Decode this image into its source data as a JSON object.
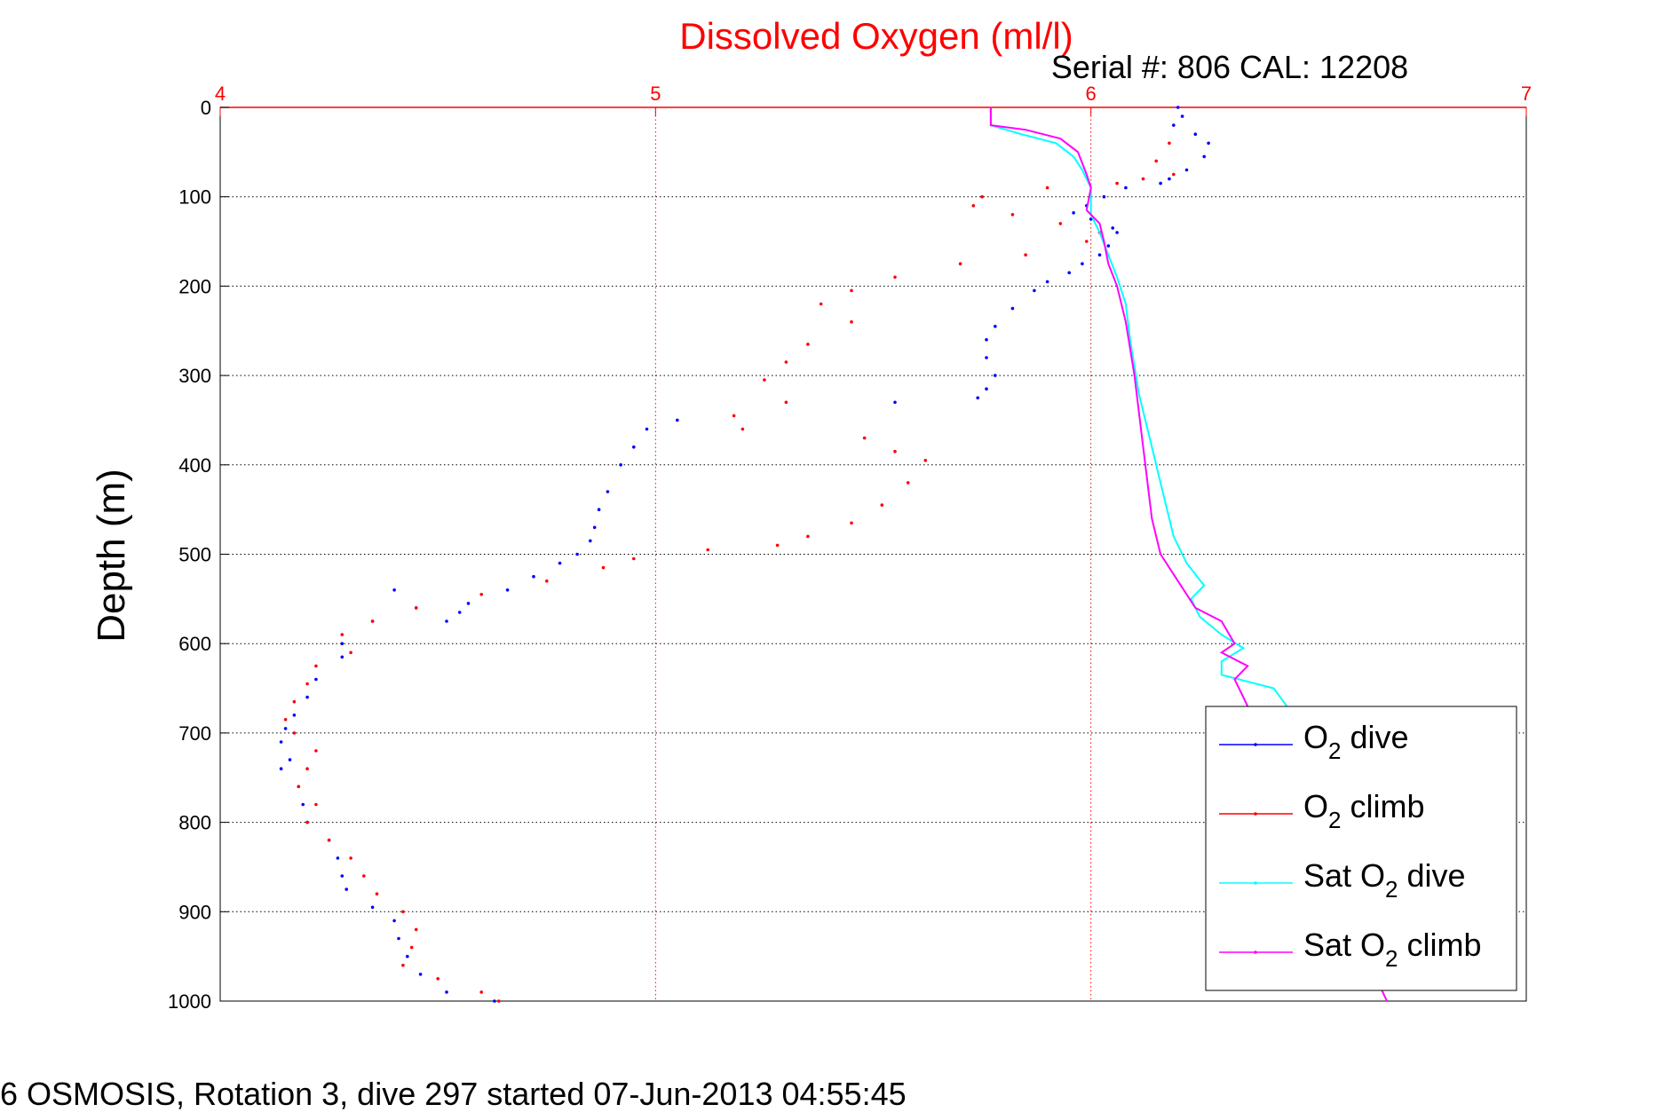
{
  "chart_data": {
    "type": "scatter",
    "title": "Dissolved Oxygen (ml/l)",
    "subtitle": "Serial #: 806  CAL: 12208",
    "ylabel": "Depth (m)",
    "xlabel": "",
    "footer": "6 OSMOSIS, Rotation 3, dive 297 started 07-Jun-2013 04:55:45",
    "xlim": [
      4,
      7
    ],
    "ylim": [
      0,
      1000
    ],
    "y_reversed": true,
    "x_axis_position": "top",
    "xticks": [
      "4",
      "5",
      "6",
      "7"
    ],
    "yticks": [
      "0",
      "100",
      "200",
      "300",
      "400",
      "500",
      "600",
      "700",
      "800",
      "900",
      "1000"
    ],
    "grid": true,
    "legend_position": "bottom-right",
    "colors": {
      "title": "#ff0000",
      "xticks": "#ff0000",
      "o2_dive": "#0000ff",
      "o2_climb": "#ff0000",
      "sat_dive": "#00ffff",
      "sat_climb": "#ff00ff"
    },
    "legend": [
      {
        "key": "o2_dive",
        "pre": "O",
        "sub": "2",
        "post": " dive"
      },
      {
        "key": "o2_climb",
        "pre": "O",
        "sub": "2",
        "post": " climb"
      },
      {
        "key": "sat_dive",
        "pre": "Sat O",
        "sub": "2",
        "post": " dive"
      },
      {
        "key": "sat_climb",
        "pre": "Sat O",
        "sub": "2",
        "post": " climb"
      }
    ],
    "series": [
      {
        "key": "o2_dive",
        "style": "dots",
        "points": [
          [
            6.2,
            0
          ],
          [
            6.21,
            10
          ],
          [
            6.19,
            20
          ],
          [
            6.24,
            30
          ],
          [
            6.27,
            40
          ],
          [
            6.26,
            55
          ],
          [
            6.22,
            70
          ],
          [
            6.18,
            80
          ],
          [
            6.16,
            85
          ],
          [
            6.08,
            90
          ],
          [
            6.03,
            100
          ],
          [
            5.99,
            110
          ],
          [
            5.96,
            118
          ],
          [
            6.0,
            125
          ],
          [
            6.05,
            135
          ],
          [
            6.06,
            140
          ],
          [
            6.04,
            155
          ],
          [
            6.02,
            165
          ],
          [
            5.98,
            175
          ],
          [
            5.95,
            185
          ],
          [
            5.9,
            195
          ],
          [
            5.87,
            205
          ],
          [
            5.82,
            225
          ],
          [
            5.78,
            245
          ],
          [
            5.76,
            260
          ],
          [
            5.76,
            280
          ],
          [
            5.78,
            300
          ],
          [
            5.76,
            315
          ],
          [
            5.74,
            325
          ],
          [
            5.55,
            330
          ],
          [
            5.05,
            350
          ],
          [
            4.98,
            360
          ],
          [
            4.95,
            380
          ],
          [
            4.92,
            400
          ],
          [
            4.89,
            430
          ],
          [
            4.87,
            450
          ],
          [
            4.86,
            470
          ],
          [
            4.85,
            485
          ],
          [
            4.82,
            500
          ],
          [
            4.78,
            510
          ],
          [
            4.72,
            525
          ],
          [
            4.66,
            540
          ],
          [
            4.57,
            555
          ],
          [
            4.55,
            565
          ],
          [
            4.52,
            575
          ],
          [
            4.45,
            560
          ],
          [
            4.4,
            540
          ],
          [
            4.35,
            575
          ],
          [
            4.28,
            600
          ],
          [
            4.28,
            615
          ],
          [
            4.22,
            640
          ],
          [
            4.2,
            660
          ],
          [
            4.17,
            680
          ],
          [
            4.15,
            695
          ],
          [
            4.14,
            710
          ],
          [
            4.16,
            730
          ],
          [
            4.14,
            740
          ],
          [
            4.18,
            760
          ],
          [
            4.19,
            780
          ],
          [
            4.2,
            800
          ],
          [
            4.25,
            820
          ],
          [
            4.27,
            840
          ],
          [
            4.28,
            860
          ],
          [
            4.29,
            875
          ],
          [
            4.35,
            895
          ],
          [
            4.4,
            910
          ],
          [
            4.41,
            930
          ],
          [
            4.43,
            950
          ],
          [
            4.46,
            970
          ],
          [
            4.52,
            990
          ],
          [
            4.63,
            1000
          ]
        ]
      },
      {
        "key": "o2_climb",
        "style": "dots",
        "points": [
          [
            6.18,
            40
          ],
          [
            6.15,
            60
          ],
          [
            6.19,
            75
          ],
          [
            6.12,
            80
          ],
          [
            6.06,
            85
          ],
          [
            5.9,
            90
          ],
          [
            5.75,
            100
          ],
          [
            5.73,
            110
          ],
          [
            5.82,
            120
          ],
          [
            5.93,
            130
          ],
          [
            6.02,
            140
          ],
          [
            5.99,
            150
          ],
          [
            5.85,
            165
          ],
          [
            5.7,
            175
          ],
          [
            5.55,
            190
          ],
          [
            5.45,
            205
          ],
          [
            5.38,
            220
          ],
          [
            5.45,
            240
          ],
          [
            5.35,
            265
          ],
          [
            5.3,
            285
          ],
          [
            5.25,
            305
          ],
          [
            5.3,
            330
          ],
          [
            5.18,
            345
          ],
          [
            5.2,
            360
          ],
          [
            5.48,
            370
          ],
          [
            5.55,
            385
          ],
          [
            5.62,
            395
          ],
          [
            5.58,
            420
          ],
          [
            5.52,
            445
          ],
          [
            5.45,
            465
          ],
          [
            5.35,
            480
          ],
          [
            5.28,
            490
          ],
          [
            5.12,
            495
          ],
          [
            4.95,
            505
          ],
          [
            4.88,
            515
          ],
          [
            4.75,
            530
          ],
          [
            4.6,
            545
          ],
          [
            4.45,
            560
          ],
          [
            4.35,
            575
          ],
          [
            4.28,
            590
          ],
          [
            4.3,
            610
          ],
          [
            4.22,
            625
          ],
          [
            4.2,
            645
          ],
          [
            4.17,
            665
          ],
          [
            4.15,
            685
          ],
          [
            4.17,
            700
          ],
          [
            4.22,
            720
          ],
          [
            4.2,
            740
          ],
          [
            4.18,
            760
          ],
          [
            4.22,
            780
          ],
          [
            4.2,
            800
          ],
          [
            4.25,
            820
          ],
          [
            4.3,
            840
          ],
          [
            4.33,
            860
          ],
          [
            4.36,
            880
          ],
          [
            4.42,
            900
          ],
          [
            4.45,
            920
          ],
          [
            4.44,
            940
          ],
          [
            4.42,
            960
          ],
          [
            4.5,
            975
          ],
          [
            4.6,
            990
          ],
          [
            4.64,
            1000
          ]
        ]
      },
      {
        "key": "sat_dive",
        "style": "line",
        "points": [
          [
            5.77,
            0
          ],
          [
            5.77,
            20
          ],
          [
            5.84,
            30
          ],
          [
            5.92,
            40
          ],
          [
            5.96,
            55
          ],
          [
            5.98,
            70
          ],
          [
            6.0,
            90
          ],
          [
            6.0,
            120
          ],
          [
            6.02,
            140
          ],
          [
            6.04,
            165
          ],
          [
            6.06,
            190
          ],
          [
            6.08,
            220
          ],
          [
            6.09,
            260
          ],
          [
            6.1,
            290
          ],
          [
            6.11,
            320
          ],
          [
            6.13,
            360
          ],
          [
            6.15,
            400
          ],
          [
            6.17,
            440
          ],
          [
            6.19,
            480
          ],
          [
            6.22,
            510
          ],
          [
            6.26,
            535
          ],
          [
            6.23,
            550
          ],
          [
            6.25,
            570
          ],
          [
            6.3,
            590
          ],
          [
            6.35,
            605
          ],
          [
            6.3,
            620
          ],
          [
            6.3,
            635
          ],
          [
            6.42,
            650
          ],
          [
            6.45,
            670
          ]
        ]
      },
      {
        "key": "sat_climb",
        "style": "line",
        "points": [
          [
            5.77,
            0
          ],
          [
            5.77,
            20
          ],
          [
            5.85,
            25
          ],
          [
            5.93,
            35
          ],
          [
            5.97,
            50
          ],
          [
            5.99,
            75
          ],
          [
            6.0,
            90
          ],
          [
            5.99,
            115
          ],
          [
            6.02,
            130
          ],
          [
            6.03,
            150
          ],
          [
            6.04,
            175
          ],
          [
            6.06,
            200
          ],
          [
            6.08,
            240
          ],
          [
            6.09,
            270
          ],
          [
            6.1,
            300
          ],
          [
            6.11,
            340
          ],
          [
            6.12,
            380
          ],
          [
            6.13,
            420
          ],
          [
            6.14,
            460
          ],
          [
            6.16,
            500
          ],
          [
            6.2,
            530
          ],
          [
            6.24,
            560
          ],
          [
            6.3,
            575
          ],
          [
            6.33,
            600
          ],
          [
            6.3,
            610
          ],
          [
            6.36,
            625
          ],
          [
            6.33,
            640
          ],
          [
            6.35,
            660
          ],
          [
            6.68,
            1000
          ]
        ]
      }
    ]
  }
}
